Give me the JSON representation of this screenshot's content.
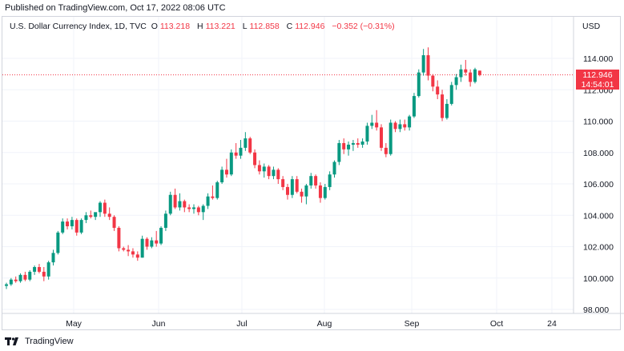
{
  "header": {
    "publish_line": "Published on TradingView.com, Oct 17, 2022 08:06 UTC"
  },
  "legend": {
    "symbol": "U.S. Dollar Currency Index, 1D, TVC",
    "open_label": "O",
    "open_value": "113.218",
    "high_label": "H",
    "high_value": "113.221",
    "low_label": "L",
    "low_value": "112.858",
    "close_label": "C",
    "close_value": "112.946",
    "change": "−0.352 (−0.31%)"
  },
  "axis": {
    "currency": "USD"
  },
  "last_price": {
    "value": "112.946",
    "countdown": "14:54:01"
  },
  "footer": {
    "brand": "TradingView",
    "logo_icon": "tradingview-logo-icon"
  },
  "colors": {
    "up": "#089981",
    "down": "#f23645",
    "grid": "#f0f3fa",
    "border": "#d1d4dc"
  },
  "chart_data": {
    "type": "candlestick",
    "title": "U.S. Dollar Currency Index, 1D, TVC",
    "ylabel": "USD",
    "ylim": [
      97.6,
      115.4
    ],
    "y_ticks": [
      "98.000",
      "100.000",
      "102.000",
      "104.000",
      "106.000",
      "108.000",
      "110.000",
      "112.000",
      "114.000"
    ],
    "x_ticks": [
      "May",
      "Jun",
      "Jul",
      "Aug",
      "Sep",
      "Oct",
      "24"
    ],
    "grid": true,
    "last_price": 112.946,
    "candles": [
      [
        99.5,
        99.7,
        99.3,
        99.6
      ],
      [
        99.6,
        100.0,
        99.5,
        99.9
      ],
      [
        99.9,
        100.1,
        99.7,
        99.8
      ],
      [
        99.8,
        100.3,
        99.7,
        100.2
      ],
      [
        100.2,
        100.4,
        99.8,
        99.9
      ],
      [
        99.9,
        100.5,
        99.8,
        100.4
      ],
      [
        100.4,
        100.8,
        100.2,
        100.7
      ],
      [
        100.7,
        100.9,
        100.3,
        100.4
      ],
      [
        100.4,
        100.7,
        99.8,
        100.1
      ],
      [
        100.1,
        101.1,
        99.9,
        101.0
      ],
      [
        101.0,
        101.8,
        100.8,
        101.6
      ],
      [
        101.6,
        103.0,
        101.5,
        102.9
      ],
      [
        102.9,
        103.8,
        102.8,
        103.6
      ],
      [
        103.6,
        103.8,
        103.1,
        103.3
      ],
      [
        103.3,
        103.9,
        103.1,
        103.7
      ],
      [
        103.7,
        103.8,
        102.7,
        102.9
      ],
      [
        102.9,
        103.8,
        102.8,
        103.7
      ],
      [
        103.7,
        104.2,
        103.5,
        104.0
      ],
      [
        104.0,
        104.3,
        103.8,
        103.9
      ],
      [
        103.9,
        104.1,
        103.7,
        104.2
      ],
      [
        104.2,
        104.9,
        103.9,
        104.8
      ],
      [
        104.8,
        105.0,
        103.9,
        104.1
      ],
      [
        104.1,
        104.5,
        103.7,
        103.9
      ],
      [
        103.9,
        104.0,
        103.0,
        103.2
      ],
      [
        103.2,
        103.3,
        101.7,
        101.9
      ],
      [
        101.9,
        102.0,
        101.7,
        101.8
      ],
      [
        101.8,
        102.1,
        101.4,
        101.7
      ],
      [
        101.7,
        101.9,
        101.3,
        101.5
      ],
      [
        101.5,
        101.7,
        101.1,
        101.3
      ],
      [
        101.3,
        102.7,
        101.3,
        102.5
      ],
      [
        102.5,
        102.6,
        101.8,
        102.0
      ],
      [
        102.0,
        102.6,
        101.9,
        102.4
      ],
      [
        102.4,
        103.0,
        102.0,
        102.2
      ],
      [
        102.2,
        103.3,
        102.1,
        103.2
      ],
      [
        103.2,
        104.3,
        103.0,
        104.1
      ],
      [
        104.1,
        105.5,
        104.0,
        105.3
      ],
      [
        105.3,
        105.7,
        104.4,
        104.5
      ],
      [
        104.5,
        105.4,
        104.3,
        104.9
      ],
      [
        104.9,
        105.0,
        104.2,
        104.5
      ],
      [
        104.5,
        104.7,
        104.2,
        104.4
      ],
      [
        104.4,
        104.7,
        104.1,
        104.5
      ],
      [
        104.5,
        104.6,
        104.0,
        104.2
      ],
      [
        104.2,
        104.7,
        103.7,
        104.6
      ],
      [
        104.6,
        105.4,
        104.4,
        105.2
      ],
      [
        105.2,
        105.9,
        105.0,
        105.1
      ],
      [
        105.1,
        106.2,
        105.0,
        106.1
      ],
      [
        106.1,
        107.1,
        106.0,
        106.9
      ],
      [
        106.9,
        107.6,
        106.4,
        106.6
      ],
      [
        106.6,
        108.2,
        106.5,
        108.0
      ],
      [
        108.0,
        108.6,
        107.6,
        107.8
      ],
      [
        107.8,
        108.8,
        107.6,
        108.3
      ],
      [
        108.3,
        109.3,
        108.1,
        108.9
      ],
      [
        108.9,
        109.0,
        107.9,
        108.0
      ],
      [
        108.0,
        108.2,
        107.0,
        107.2
      ],
      [
        107.2,
        107.5,
        106.6,
        106.8
      ],
      [
        106.8,
        107.3,
        106.4,
        107.1
      ],
      [
        107.1,
        107.2,
        106.3,
        106.5
      ],
      [
        106.5,
        107.1,
        106.3,
        106.9
      ],
      [
        106.9,
        107.0,
        106.0,
        106.3
      ],
      [
        106.3,
        106.5,
        105.6,
        105.8
      ],
      [
        105.8,
        106.0,
        105.0,
        105.3
      ],
      [
        105.3,
        106.5,
        105.1,
        106.3
      ],
      [
        106.3,
        106.5,
        105.4,
        105.5
      ],
      [
        105.5,
        105.7,
        104.8,
        105.2
      ],
      [
        105.2,
        106.0,
        104.7,
        105.9
      ],
      [
        105.9,
        106.7,
        105.7,
        106.5
      ],
      [
        106.5,
        106.6,
        105.7,
        105.9
      ],
      [
        105.9,
        106.1,
        104.8,
        105.1
      ],
      [
        105.1,
        106.0,
        105.0,
        105.8
      ],
      [
        105.8,
        106.8,
        105.6,
        106.6
      ],
      [
        106.6,
        107.5,
        106.4,
        107.4
      ],
      [
        107.4,
        108.8,
        107.2,
        108.6
      ],
      [
        108.6,
        108.9,
        107.9,
        108.2
      ],
      [
        108.2,
        108.7,
        107.8,
        108.5
      ],
      [
        108.5,
        108.8,
        108.1,
        108.6
      ],
      [
        108.6,
        108.9,
        108.3,
        108.5
      ],
      [
        108.5,
        108.9,
        108.3,
        108.7
      ],
      [
        108.7,
        109.9,
        108.5,
        109.7
      ],
      [
        109.7,
        110.4,
        109.5,
        109.9
      ],
      [
        109.9,
        110.7,
        109.4,
        109.6
      ],
      [
        109.6,
        109.8,
        108.1,
        108.3
      ],
      [
        108.3,
        108.6,
        107.7,
        107.9
      ],
      [
        107.9,
        110.1,
        107.8,
        109.9
      ],
      [
        109.9,
        110.0,
        109.3,
        109.5
      ],
      [
        109.5,
        110.1,
        109.3,
        109.8
      ],
      [
        109.8,
        110.1,
        109.4,
        109.6
      ],
      [
        109.6,
        110.4,
        109.4,
        110.3
      ],
      [
        110.3,
        111.8,
        110.2,
        111.6
      ],
      [
        111.6,
        113.3,
        111.5,
        113.1
      ],
      [
        113.1,
        114.6,
        112.9,
        114.2
      ],
      [
        114.2,
        114.7,
        112.6,
        112.9
      ],
      [
        112.9,
        113.0,
        111.9,
        112.2
      ],
      [
        112.2,
        112.6,
        111.4,
        111.7
      ],
      [
        111.7,
        112.0,
        110.0,
        110.2
      ],
      [
        110.2,
        111.4,
        110.1,
        111.1
      ],
      [
        111.1,
        112.5,
        111.0,
        112.3
      ],
      [
        112.3,
        113.0,
        112.0,
        112.8
      ],
      [
        112.8,
        113.6,
        112.5,
        113.3
      ],
      [
        113.3,
        113.9,
        112.9,
        113.1
      ],
      [
        113.1,
        113.3,
        112.2,
        112.5
      ],
      [
        112.5,
        113.4,
        112.4,
        113.3
      ],
      [
        113.218,
        113.221,
        112.858,
        112.946
      ]
    ]
  }
}
